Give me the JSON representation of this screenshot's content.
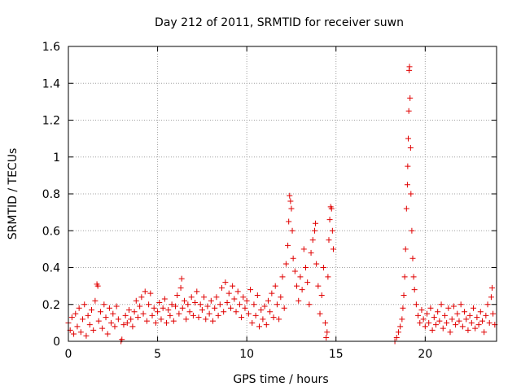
{
  "chart_data": {
    "type": "scatter",
    "title": "Day 212 of 2011, SRMTID for receiver suwn",
    "xlabel": "GPS time / hours",
    "ylabel": "SRMTID / TECUs",
    "xlim": [
      0,
      24
    ],
    "ylim": [
      0,
      1.6
    ],
    "grid": true,
    "marker": "+",
    "series_color": "#e00000",
    "x_ticks": [
      0,
      5,
      10,
      15,
      20
    ],
    "x_tick_labels": [
      "0",
      "5",
      "10",
      "15",
      "20"
    ],
    "y_ticks": [
      0,
      0.2,
      0.4,
      0.6,
      0.8,
      1.0,
      1.2,
      1.4,
      1.6
    ],
    "y_tick_labels": [
      "0",
      "0.2",
      "0.4",
      "0.6",
      "0.8",
      "1",
      "1.2",
      "1.4",
      "1.6"
    ],
    "series": [
      {
        "name": "SRMTID",
        "points": [
          [
            0.0,
            0.1
          ],
          [
            0.1,
            0.06
          ],
          [
            0.2,
            0.13
          ],
          [
            0.3,
            0.04
          ],
          [
            0.4,
            0.15
          ],
          [
            0.5,
            0.08
          ],
          [
            0.6,
            0.18
          ],
          [
            0.7,
            0.05
          ],
          [
            0.8,
            0.12
          ],
          [
            0.9,
            0.2
          ],
          [
            1.0,
            0.03
          ],
          [
            1.1,
            0.14
          ],
          [
            1.2,
            0.09
          ],
          [
            1.3,
            0.17
          ],
          [
            1.4,
            0.06
          ],
          [
            1.5,
            0.22
          ],
          [
            1.6,
            0.31
          ],
          [
            1.65,
            0.3
          ],
          [
            1.7,
            0.11
          ],
          [
            1.8,
            0.16
          ],
          [
            1.9,
            0.07
          ],
          [
            2.0,
            0.2
          ],
          [
            2.1,
            0.13
          ],
          [
            2.2,
            0.04
          ],
          [
            2.3,
            0.18
          ],
          [
            2.4,
            0.1
          ],
          [
            2.5,
            0.15
          ],
          [
            2.6,
            0.08
          ],
          [
            2.7,
            0.19
          ],
          [
            2.8,
            0.12
          ],
          [
            2.95,
            0.0
          ],
          [
            3.0,
            0.01
          ],
          [
            3.1,
            0.09
          ],
          [
            3.2,
            0.14
          ],
          [
            3.3,
            0.1
          ],
          [
            3.4,
            0.17
          ],
          [
            3.5,
            0.12
          ],
          [
            3.6,
            0.08
          ],
          [
            3.7,
            0.16
          ],
          [
            3.8,
            0.22
          ],
          [
            3.9,
            0.13
          ],
          [
            4.0,
            0.19
          ],
          [
            4.1,
            0.24
          ],
          [
            4.2,
            0.15
          ],
          [
            4.3,
            0.27
          ],
          [
            4.4,
            0.11
          ],
          [
            4.5,
            0.2
          ],
          [
            4.6,
            0.26
          ],
          [
            4.7,
            0.14
          ],
          [
            4.8,
            0.18
          ],
          [
            4.9,
            0.1
          ],
          [
            5.0,
            0.16
          ],
          [
            5.1,
            0.21
          ],
          [
            5.2,
            0.12
          ],
          [
            5.3,
            0.18
          ],
          [
            5.4,
            0.23
          ],
          [
            5.5,
            0.1
          ],
          [
            5.6,
            0.17
          ],
          [
            5.7,
            0.14
          ],
          [
            5.8,
            0.2
          ],
          [
            5.9,
            0.11
          ],
          [
            6.0,
            0.19
          ],
          [
            6.1,
            0.25
          ],
          [
            6.2,
            0.15
          ],
          [
            6.3,
            0.29
          ],
          [
            6.35,
            0.34
          ],
          [
            6.4,
            0.18
          ],
          [
            6.5,
            0.22
          ],
          [
            6.6,
            0.12
          ],
          [
            6.7,
            0.2
          ],
          [
            6.8,
            0.16
          ],
          [
            6.9,
            0.24
          ],
          [
            7.0,
            0.14
          ],
          [
            7.1,
            0.21
          ],
          [
            7.2,
            0.27
          ],
          [
            7.3,
            0.13
          ],
          [
            7.4,
            0.2
          ],
          [
            7.5,
            0.17
          ],
          [
            7.6,
            0.24
          ],
          [
            7.7,
            0.12
          ],
          [
            7.8,
            0.19
          ],
          [
            7.9,
            0.15
          ],
          [
            8.0,
            0.22
          ],
          [
            8.1,
            0.11
          ],
          [
            8.2,
            0.18
          ],
          [
            8.3,
            0.24
          ],
          [
            8.4,
            0.14
          ],
          [
            8.5,
            0.2
          ],
          [
            8.6,
            0.29
          ],
          [
            8.7,
            0.16
          ],
          [
            8.8,
            0.32
          ],
          [
            8.9,
            0.21
          ],
          [
            9.0,
            0.26
          ],
          [
            9.1,
            0.18
          ],
          [
            9.2,
            0.3
          ],
          [
            9.3,
            0.23
          ],
          [
            9.4,
            0.16
          ],
          [
            9.5,
            0.27
          ],
          [
            9.6,
            0.2
          ],
          [
            9.7,
            0.13
          ],
          [
            9.8,
            0.24
          ],
          [
            9.9,
            0.18
          ],
          [
            10.0,
            0.22
          ],
          [
            10.1,
            0.15
          ],
          [
            10.2,
            0.28
          ],
          [
            10.3,
            0.1
          ],
          [
            10.4,
            0.2
          ],
          [
            10.5,
            0.14
          ],
          [
            10.6,
            0.25
          ],
          [
            10.7,
            0.08
          ],
          [
            10.8,
            0.17
          ],
          [
            10.9,
            0.12
          ],
          [
            11.0,
            0.19
          ],
          [
            11.1,
            0.09
          ],
          [
            11.2,
            0.22
          ],
          [
            11.3,
            0.16
          ],
          [
            11.4,
            0.26
          ],
          [
            11.5,
            0.13
          ],
          [
            11.6,
            0.3
          ],
          [
            11.7,
            0.2
          ],
          [
            11.8,
            0.12
          ],
          [
            11.9,
            0.24
          ],
          [
            12.0,
            0.35
          ],
          [
            12.1,
            0.18
          ],
          [
            12.2,
            0.42
          ],
          [
            12.3,
            0.52
          ],
          [
            12.35,
            0.65
          ],
          [
            12.4,
            0.79
          ],
          [
            12.45,
            0.76
          ],
          [
            12.5,
            0.72
          ],
          [
            12.55,
            0.6
          ],
          [
            12.6,
            0.45
          ],
          [
            12.7,
            0.38
          ],
          [
            12.8,
            0.3
          ],
          [
            12.9,
            0.22
          ],
          [
            13.0,
            0.35
          ],
          [
            13.1,
            0.28
          ],
          [
            13.2,
            0.5
          ],
          [
            13.3,
            0.4
          ],
          [
            13.4,
            0.32
          ],
          [
            13.5,
            0.2
          ],
          [
            13.6,
            0.48
          ],
          [
            13.7,
            0.55
          ],
          [
            13.8,
            0.6
          ],
          [
            13.85,
            0.64
          ],
          [
            13.9,
            0.42
          ],
          [
            14.0,
            0.3
          ],
          [
            14.1,
            0.15
          ],
          [
            14.2,
            0.25
          ],
          [
            14.3,
            0.4
          ],
          [
            14.4,
            0.1
          ],
          [
            14.45,
            0.02
          ],
          [
            14.5,
            0.05
          ],
          [
            14.55,
            0.35
          ],
          [
            14.6,
            0.55
          ],
          [
            14.65,
            0.66
          ],
          [
            14.7,
            0.73
          ],
          [
            14.75,
            0.72
          ],
          [
            14.8,
            0.6
          ],
          [
            14.85,
            0.5
          ],
          [
            18.3,
            0.0
          ],
          [
            18.4,
            0.02
          ],
          [
            18.5,
            0.05
          ],
          [
            18.6,
            0.08
          ],
          [
            18.7,
            0.12
          ],
          [
            18.75,
            0.18
          ],
          [
            18.8,
            0.25
          ],
          [
            18.85,
            0.35
          ],
          [
            18.9,
            0.5
          ],
          [
            18.95,
            0.72
          ],
          [
            19.0,
            0.85
          ],
          [
            19.02,
            0.95
          ],
          [
            19.05,
            1.1
          ],
          [
            19.08,
            1.25
          ],
          [
            19.1,
            1.47
          ],
          [
            19.12,
            1.49
          ],
          [
            19.15,
            1.32
          ],
          [
            19.18,
            1.05
          ],
          [
            19.2,
            0.8
          ],
          [
            19.25,
            0.6
          ],
          [
            19.3,
            0.45
          ],
          [
            19.35,
            0.35
          ],
          [
            19.4,
            0.28
          ],
          [
            19.5,
            0.2
          ],
          [
            19.6,
            0.14
          ],
          [
            19.7,
            0.1
          ],
          [
            19.8,
            0.17
          ],
          [
            19.9,
            0.12
          ],
          [
            20.0,
            0.08
          ],
          [
            20.1,
            0.15
          ],
          [
            20.2,
            0.1
          ],
          [
            20.3,
            0.18
          ],
          [
            20.4,
            0.06
          ],
          [
            20.5,
            0.13
          ],
          [
            20.6,
            0.09
          ],
          [
            20.7,
            0.16
          ],
          [
            20.8,
            0.11
          ],
          [
            20.9,
            0.2
          ],
          [
            21.0,
            0.07
          ],
          [
            21.1,
            0.14
          ],
          [
            21.2,
            0.1
          ],
          [
            21.3,
            0.18
          ],
          [
            21.4,
            0.05
          ],
          [
            21.5,
            0.12
          ],
          [
            21.6,
            0.19
          ],
          [
            21.7,
            0.09
          ],
          [
            21.8,
            0.15
          ],
          [
            21.9,
            0.11
          ],
          [
            22.0,
            0.2
          ],
          [
            22.1,
            0.08
          ],
          [
            22.2,
            0.16
          ],
          [
            22.3,
            0.12
          ],
          [
            22.4,
            0.06
          ],
          [
            22.5,
            0.14
          ],
          [
            22.6,
            0.1
          ],
          [
            22.7,
            0.18
          ],
          [
            22.8,
            0.07
          ],
          [
            22.9,
            0.13
          ],
          [
            23.0,
            0.09
          ],
          [
            23.1,
            0.16
          ],
          [
            23.2,
            0.11
          ],
          [
            23.3,
            0.05
          ],
          [
            23.4,
            0.14
          ],
          [
            23.5,
            0.2
          ],
          [
            23.6,
            0.1
          ],
          [
            23.7,
            0.24
          ],
          [
            23.75,
            0.29
          ],
          [
            23.8,
            0.15
          ],
          [
            23.9,
            0.09
          ]
        ]
      }
    ]
  }
}
